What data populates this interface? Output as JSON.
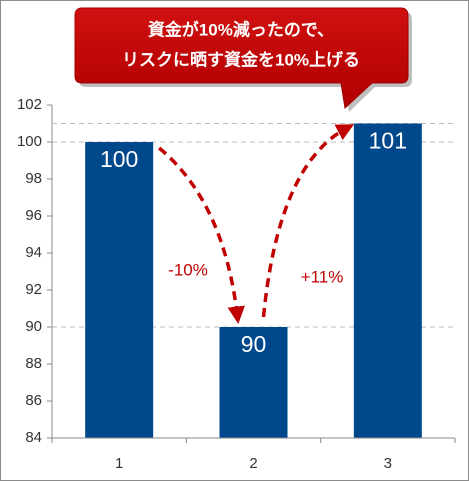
{
  "chart_data": {
    "type": "bar",
    "categories": [
      "1",
      "2",
      "3"
    ],
    "values": [
      100,
      90,
      101
    ],
    "color": "#00488c",
    "ylim": [
      84,
      102
    ],
    "yticks": [
      84,
      86,
      88,
      90,
      92,
      94,
      96,
      98,
      100,
      102
    ],
    "reference_lines": true,
    "callout_lines": [
      "資金が10%減ったので、",
      "リスクに晒す資金を10%上げる"
    ],
    "annotations": [
      "-10%",
      "+11%"
    ]
  }
}
